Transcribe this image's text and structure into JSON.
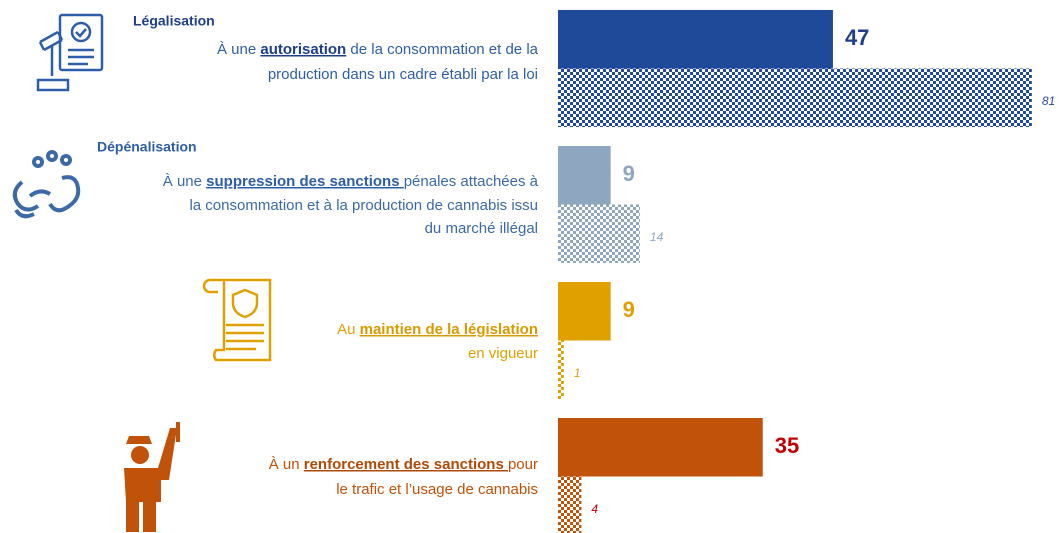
{
  "chart_data": {
    "type": "bar",
    "orientation": "horizontal",
    "categories": [
      {
        "title": "Légalisation",
        "lines": [
          [
            {
              "text": "À une "
            },
            {
              "text": "autorisation",
              "strong": true
            },
            {
              "text": " de la consommation et de la"
            }
          ],
          [
            {
              "text": "production dans un cadre établi par la loi"
            }
          ]
        ]
      },
      {
        "title": "Dépénalisation",
        "lines": [
          [
            {
              "text": "À une "
            },
            {
              "text": "suppression des sanctions ",
              "strong": true
            },
            {
              "text": "pénales attachées à"
            }
          ],
          [
            {
              "text": "la consommation et à la production de cannabis issu"
            }
          ],
          [
            {
              "text": "du marché illégal"
            }
          ]
        ]
      },
      {
        "lines": [
          [
            {
              "text": "Au "
            },
            {
              "text": "maintien de la législation",
              "strong": true
            }
          ],
          [
            {
              "text": "en vigueur"
            }
          ]
        ]
      },
      {
        "lines": [
          [
            {
              "text": "À un "
            },
            {
              "text": "renforcement des sanctions ",
              "strong": true
            },
            {
              "text": "pour"
            }
          ],
          [
            {
              "text": "le trafic et l’usage de cannabis"
            }
          ]
        ]
      }
    ],
    "text_colors": [
      "#2f5ea8",
      "#3c6aa6",
      "#e0a100",
      "#c0520a"
    ],
    "strong_colors": [
      "#1f3f8a",
      "#2f5ea8",
      "#d99a00",
      "#b04a08"
    ],
    "series": [
      {
        "pattern": "solid",
        "colors": [
          "#1f4a9a",
          "#8fa6c0",
          "#e0a100",
          "#c0520a"
        ],
        "label_colors": [
          "#1f3f8a",
          "#8fa6c0",
          "#e0a100",
          "#c00000"
        ],
        "values": [
          47,
          9,
          9,
          35
        ]
      },
      {
        "pattern": "checker",
        "colors": [
          "#1f4a9a",
          "#8fa6c0",
          "#e0a100",
          "#c0520a"
        ],
        "label_colors": [
          "#1f4a9a",
          "#8fa6c0",
          "#e0a100",
          "#c00000"
        ],
        "values": [
          81,
          14,
          1,
          4
        ]
      }
    ]
  }
}
